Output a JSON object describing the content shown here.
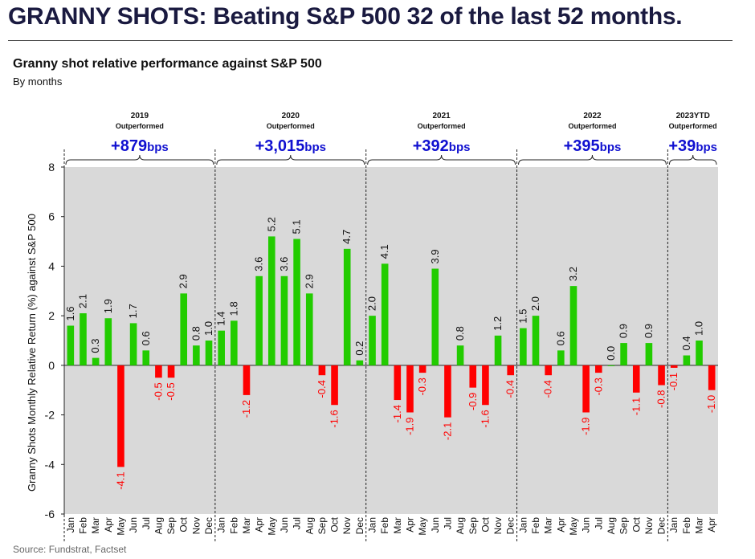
{
  "headline": "GRANNY SHOTS: Beating S&P 500 32 of the last 52 months.",
  "source": "Source: Fundstrat, Factset",
  "chart_data": {
    "type": "bar",
    "title": "Granny shot relative performance against S&P 500",
    "subtitle": "By months",
    "ylabel": "Granny Shots Monthly Relative Return (%) against S&P 500",
    "xlabel": "",
    "ylim": [
      -6,
      8
    ],
    "yticks": [
      -6,
      -4,
      -2,
      0,
      2,
      4,
      6,
      8
    ],
    "grid": false,
    "colors": {
      "positive": "#22cc00",
      "negative": "#ff0000",
      "plot_background": "#d9d9d9",
      "annotation": "#1010d0"
    },
    "categories": [
      "Jan",
      "Feb",
      "Mar",
      "Apr",
      "May",
      "Jun",
      "Jul",
      "Aug",
      "Sep",
      "Oct",
      "Nov",
      "Dec",
      "Jan",
      "Feb",
      "Mar",
      "Apr",
      "May",
      "Jun",
      "Jul",
      "Aug",
      "Sep",
      "Oct",
      "Nov",
      "Dec",
      "Jan",
      "Feb",
      "Mar",
      "Apr",
      "May",
      "Jun",
      "Jul",
      "Aug",
      "Sep",
      "Oct",
      "Nov",
      "Dec",
      "Jan",
      "Feb",
      "Mar",
      "Apr",
      "May",
      "Jun",
      "Jul",
      "Aug",
      "Sep",
      "Oct",
      "Nov",
      "Dec",
      "Jan",
      "Feb",
      "Mar",
      "Apr"
    ],
    "values": [
      1.6,
      2.1,
      0.3,
      1.9,
      -4.1,
      1.7,
      0.6,
      -0.5,
      -0.5,
      2.9,
      0.8,
      1.0,
      1.4,
      1.8,
      -1.2,
      3.6,
      5.2,
      3.6,
      5.1,
      2.9,
      -0.4,
      -1.6,
      4.7,
      0.2,
      2.0,
      4.1,
      -1.4,
      -1.9,
      -0.3,
      3.9,
      -2.1,
      0.8,
      -0.9,
      -1.6,
      1.2,
      -0.4,
      1.5,
      2.0,
      -0.4,
      0.6,
      3.2,
      -1.9,
      -0.3,
      0.0,
      0.9,
      -1.1,
      0.9,
      -0.8,
      -0.1,
      0.4,
      1.0,
      -1.0
    ],
    "value_labels": [
      "1.6",
      "2.1",
      "0.3",
      "1.9",
      "-4.1",
      "1.7",
      "0.6",
      "-0.5",
      "-0.5",
      "2.9",
      "0.8",
      "1.0",
      "1.4",
      "1.8",
      "-1.2",
      "3.6",
      "5.2",
      "3.6",
      "5.1",
      "2.9",
      "-0.4",
      "-1.6",
      "4.7",
      "0.2",
      "2.0",
      "4.1",
      "-1.4",
      "-1.9",
      "-0.3",
      "3.9",
      "-2.1",
      "0.8",
      "-0.9",
      "-1.6",
      "1.2",
      "-0.4",
      "1.5",
      "2.0",
      "-0.4",
      "0.6",
      "3.2",
      "-1.9",
      "-0.3",
      "0.0",
      "0.9",
      "-1.1",
      "0.9",
      "-0.8",
      "-0.1",
      "0.4",
      "1.0",
      "-1.0"
    ],
    "groups": [
      {
        "year": "2019",
        "status": "Outperformed",
        "value": "+879",
        "unit": "bps",
        "months": 12
      },
      {
        "year": "2020",
        "status": "Outperformed",
        "value": "+3,015",
        "unit": "bps",
        "months": 12
      },
      {
        "year": "2021",
        "status": "Outperformed",
        "value": "+392",
        "unit": "bps",
        "months": 12
      },
      {
        "year": "2022",
        "status": "Outperformed",
        "value": "+395",
        "unit": "bps",
        "months": 12
      },
      {
        "year": "2023YTD",
        "status": "Outperformed",
        "value": "+39",
        "unit": "bps",
        "months": 4
      }
    ]
  }
}
